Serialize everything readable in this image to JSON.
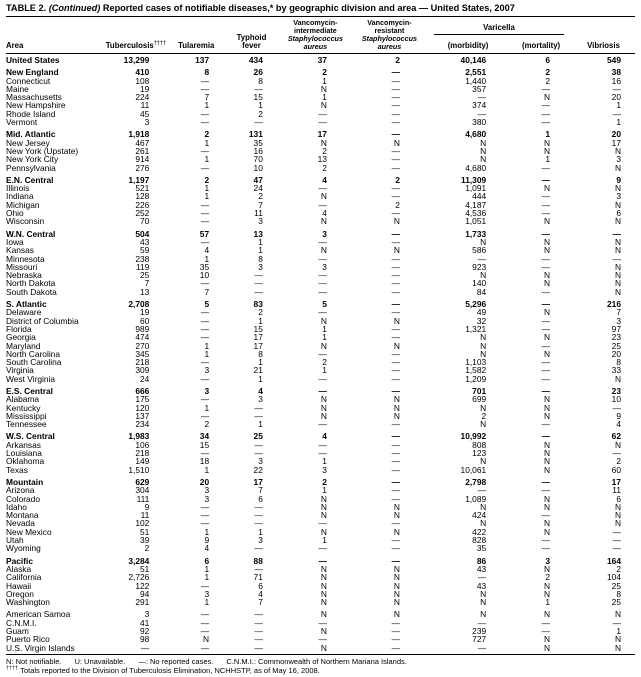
{
  "title": {
    "label": "TABLE 2.",
    "continued": "(Continued)",
    "text": "Reported cases of notifiable diseases,* by geographic division and area — United States, 2007"
  },
  "columns": {
    "area": "Area",
    "tuberculosis": "Tuberculosis",
    "tuberculosis_sup": "††††",
    "tularemia": "Tularemia",
    "typhoid_line1": "Typhoid",
    "typhoid_line2": "fever",
    "visa_line1": "Vancomycin-",
    "visa_line2": "intermediate",
    "vrsa_line1": "Vancomycin-",
    "vrsa_line2": "resistant",
    "staph_line1": "Staphylococcus",
    "staph_line2": "aureus",
    "varicella": "Varicella",
    "morbidity": "(morbidity)",
    "mortality": "(mortality)",
    "vibriosis": "Vibriosis"
  },
  "rows": [
    {
      "area": "United States",
      "b": true,
      "g": false,
      "v": [
        "13,299",
        "137",
        "434",
        "37",
        "2",
        "40,146",
        "6",
        "549"
      ]
    },
    {
      "area": "New England",
      "b": true,
      "g": true,
      "v": [
        "410",
        "8",
        "26",
        "2",
        "—",
        "2,551",
        "2",
        "38"
      ]
    },
    {
      "area": "Connecticut",
      "b": false,
      "g": false,
      "v": [
        "108",
        "—",
        "8",
        "1",
        "—",
        "1,440",
        "2",
        "16"
      ]
    },
    {
      "area": "Maine",
      "b": false,
      "g": false,
      "v": [
        "19",
        "—",
        "—",
        "N",
        "—",
        "357",
        "—",
        "—"
      ]
    },
    {
      "area": "Massachusetts",
      "b": false,
      "g": false,
      "v": [
        "224",
        "7",
        "15",
        "1",
        "—",
        "—",
        "N",
        "20"
      ]
    },
    {
      "area": "New Hampshire",
      "b": false,
      "g": false,
      "v": [
        "11",
        "1",
        "1",
        "N",
        "—",
        "374",
        "—",
        "1"
      ]
    },
    {
      "area": "Rhode Island",
      "b": false,
      "g": false,
      "v": [
        "45",
        "—",
        "2",
        "—",
        "—",
        "—",
        "—",
        "—"
      ]
    },
    {
      "area": "Vermont",
      "b": false,
      "g": false,
      "v": [
        "3",
        "—",
        "—",
        "—",
        "—",
        "380",
        "—",
        "1"
      ]
    },
    {
      "area": "Mid. Atlantic",
      "b": true,
      "g": true,
      "v": [
        "1,918",
        "2",
        "131",
        "17",
        "—",
        "4,680",
        "1",
        "20"
      ]
    },
    {
      "area": "New Jersey",
      "b": false,
      "g": false,
      "v": [
        "467",
        "1",
        "35",
        "N",
        "N",
        "N",
        "N",
        "17"
      ]
    },
    {
      "area": "New York (Upstate)",
      "b": false,
      "g": false,
      "v": [
        "261",
        "—",
        "16",
        "2",
        "—",
        "N",
        "N",
        "N"
      ]
    },
    {
      "area": "New York City",
      "b": false,
      "g": false,
      "v": [
        "914",
        "1",
        "70",
        "13",
        "—",
        "N",
        "1",
        "3"
      ]
    },
    {
      "area": "Pennsylvania",
      "b": false,
      "g": false,
      "v": [
        "276",
        "—",
        "10",
        "2",
        "—",
        "4,680",
        "—",
        "N"
      ]
    },
    {
      "area": "E.N. Central",
      "b": true,
      "g": true,
      "v": [
        "1,197",
        "2",
        "47",
        "4",
        "2",
        "11,309",
        "—",
        "9"
      ]
    },
    {
      "area": "Illinois",
      "b": false,
      "g": false,
      "v": [
        "521",
        "1",
        "24",
        "—",
        "—",
        "1,091",
        "N",
        "N"
      ]
    },
    {
      "area": "Indiana",
      "b": false,
      "g": false,
      "v": [
        "128",
        "1",
        "2",
        "N",
        "—",
        "444",
        "—",
        "3"
      ]
    },
    {
      "area": "Michigan",
      "b": false,
      "g": false,
      "v": [
        "226",
        "—",
        "7",
        "—",
        "2",
        "4,187",
        "—",
        "N"
      ]
    },
    {
      "area": "Ohio",
      "b": false,
      "g": false,
      "v": [
        "252",
        "—",
        "11",
        "4",
        "—",
        "4,536",
        "—",
        "6"
      ]
    },
    {
      "area": "Wisconsin",
      "b": false,
      "g": false,
      "v": [
        "70",
        "—",
        "3",
        "N",
        "N",
        "1,051",
        "N",
        "N"
      ]
    },
    {
      "area": "W.N. Central",
      "b": true,
      "g": true,
      "v": [
        "504",
        "57",
        "13",
        "3",
        "—",
        "1,733",
        "—",
        "—"
      ]
    },
    {
      "area": "Iowa",
      "b": false,
      "g": false,
      "v": [
        "43",
        "—",
        "1",
        "—",
        "—",
        "N",
        "N",
        "N"
      ]
    },
    {
      "area": "Kansas",
      "b": false,
      "g": false,
      "v": [
        "59",
        "4",
        "1",
        "N",
        "N",
        "586",
        "N",
        "N"
      ]
    },
    {
      "area": "Minnesota",
      "b": false,
      "g": false,
      "v": [
        "238",
        "1",
        "8",
        "—",
        "—",
        "—",
        "—",
        "—"
      ]
    },
    {
      "area": "Missouri",
      "b": false,
      "g": false,
      "v": [
        "119",
        "35",
        "3",
        "3",
        "—",
        "923",
        "—",
        "N"
      ]
    },
    {
      "area": "Nebraska",
      "b": false,
      "g": false,
      "v": [
        "25",
        "10",
        "—",
        "—",
        "—",
        "N",
        "N",
        "N"
      ]
    },
    {
      "area": "North Dakota",
      "b": false,
      "g": false,
      "v": [
        "7",
        "—",
        "—",
        "—",
        "—",
        "140",
        "N",
        "N"
      ]
    },
    {
      "area": "South Dakota",
      "b": false,
      "g": false,
      "v": [
        "13",
        "7",
        "—",
        "—",
        "—",
        "84",
        "—",
        "N"
      ]
    },
    {
      "area": "S. Atlantic",
      "b": true,
      "g": true,
      "v": [
        "2,708",
        "5",
        "83",
        "5",
        "—",
        "5,296",
        "—",
        "216"
      ]
    },
    {
      "area": "Delaware",
      "b": false,
      "g": false,
      "v": [
        "19",
        "—",
        "2",
        "—",
        "—",
        "49",
        "N",
        "7"
      ]
    },
    {
      "area": "District of Columbia",
      "b": false,
      "g": false,
      "v": [
        "60",
        "—",
        "1",
        "N",
        "N",
        "32",
        "—",
        "3"
      ]
    },
    {
      "area": "Florida",
      "b": false,
      "g": false,
      "v": [
        "989",
        "—",
        "15",
        "1",
        "—",
        "1,321",
        "—",
        "97"
      ]
    },
    {
      "area": "Georgia",
      "b": false,
      "g": false,
      "v": [
        "474",
        "—",
        "17",
        "1",
        "—",
        "N",
        "N",
        "23"
      ]
    },
    {
      "area": "Maryland",
      "b": false,
      "g": false,
      "v": [
        "270",
        "1",
        "17",
        "N",
        "N",
        "N",
        "—",
        "25"
      ]
    },
    {
      "area": "North Carolina",
      "b": false,
      "g": false,
      "v": [
        "345",
        "1",
        "8",
        "—",
        "—",
        "N",
        "N",
        "20"
      ]
    },
    {
      "area": "South Carolina",
      "b": false,
      "g": false,
      "v": [
        "218",
        "—",
        "1",
        "2",
        "—",
        "1,103",
        "—",
        "8"
      ]
    },
    {
      "area": "Virginia",
      "b": false,
      "g": false,
      "v": [
        "309",
        "3",
        "21",
        "1",
        "—",
        "1,582",
        "—",
        "33"
      ]
    },
    {
      "area": "West Virginia",
      "b": false,
      "g": false,
      "v": [
        "24",
        "—",
        "1",
        "—",
        "—",
        "1,209",
        "—",
        "N"
      ]
    },
    {
      "area": "E.S. Central",
      "b": true,
      "g": true,
      "v": [
        "666",
        "3",
        "4",
        "—",
        "—",
        "701",
        "—",
        "23"
      ]
    },
    {
      "area": "Alabama",
      "b": false,
      "g": false,
      "v": [
        "175",
        "—",
        "3",
        "N",
        "N",
        "699",
        "N",
        "10"
      ]
    },
    {
      "area": "Kentucky",
      "b": false,
      "g": false,
      "v": [
        "120",
        "1",
        "—",
        "N",
        "N",
        "N",
        "N",
        "—"
      ]
    },
    {
      "area": "Mississippi",
      "b": false,
      "g": false,
      "v": [
        "137",
        "—",
        "—",
        "N",
        "N",
        "2",
        "N",
        "9"
      ]
    },
    {
      "area": "Tennessee",
      "b": false,
      "g": false,
      "v": [
        "234",
        "2",
        "1",
        "—",
        "—",
        "N",
        "—",
        "4"
      ]
    },
    {
      "area": "W.S. Central",
      "b": true,
      "g": true,
      "v": [
        "1,983",
        "34",
        "25",
        "4",
        "—",
        "10,992",
        "—",
        "62"
      ]
    },
    {
      "area": "Arkansas",
      "b": false,
      "g": false,
      "v": [
        "106",
        "15",
        "—",
        "—",
        "—",
        "808",
        "N",
        "N"
      ]
    },
    {
      "area": "Louisiana",
      "b": false,
      "g": false,
      "v": [
        "218",
        "—",
        "—",
        "—",
        "—",
        "123",
        "N",
        "—"
      ]
    },
    {
      "area": "Oklahoma",
      "b": false,
      "g": false,
      "v": [
        "149",
        "18",
        "3",
        "1",
        "—",
        "N",
        "N",
        "2"
      ]
    },
    {
      "area": "Texas",
      "b": false,
      "g": false,
      "v": [
        "1,510",
        "1",
        "22",
        "3",
        "—",
        "10,061",
        "N",
        "60"
      ]
    },
    {
      "area": "Mountain",
      "b": true,
      "g": true,
      "v": [
        "629",
        "20",
        "17",
        "2",
        "—",
        "2,798",
        "—",
        "17"
      ]
    },
    {
      "area": "Arizona",
      "b": false,
      "g": false,
      "v": [
        "304",
        "3",
        "7",
        "1",
        "—",
        "—",
        "—",
        "11"
      ]
    },
    {
      "area": "Colorado",
      "b": false,
      "g": false,
      "v": [
        "111",
        "3",
        "6",
        "N",
        "—",
        "1,089",
        "N",
        "6"
      ]
    },
    {
      "area": "Idaho",
      "b": false,
      "g": false,
      "v": [
        "9",
        "—",
        "—",
        "N",
        "N",
        "N",
        "N",
        "N"
      ]
    },
    {
      "area": "Montana",
      "b": false,
      "g": false,
      "v": [
        "11",
        "—",
        "—",
        "N",
        "N",
        "424",
        "—",
        "N"
      ]
    },
    {
      "area": "Nevada",
      "b": false,
      "g": false,
      "v": [
        "102",
        "—",
        "—",
        "—",
        "—",
        "N",
        "N",
        "N"
      ]
    },
    {
      "area": "New Mexico",
      "b": false,
      "g": false,
      "v": [
        "51",
        "1",
        "1",
        "N",
        "N",
        "422",
        "N",
        "—"
      ]
    },
    {
      "area": "Utah",
      "b": false,
      "g": false,
      "v": [
        "39",
        "9",
        "3",
        "1",
        "—",
        "828",
        "—",
        "—"
      ]
    },
    {
      "area": "Wyoming",
      "b": false,
      "g": false,
      "v": [
        "2",
        "4",
        "—",
        "—",
        "—",
        "35",
        "—",
        "—"
      ]
    },
    {
      "area": "Pacific",
      "b": true,
      "g": true,
      "v": [
        "3,284",
        "6",
        "88",
        "—",
        "—",
        "86",
        "3",
        "164"
      ]
    },
    {
      "area": "Alaska",
      "b": false,
      "g": false,
      "v": [
        "51",
        "1",
        "—",
        "N",
        "N",
        "43",
        "N",
        "2"
      ]
    },
    {
      "area": "California",
      "b": false,
      "g": false,
      "v": [
        "2,726",
        "1",
        "71",
        "N",
        "N",
        "—",
        "2",
        "104"
      ]
    },
    {
      "area": "Hawaii",
      "b": false,
      "g": false,
      "v": [
        "122",
        "—",
        "6",
        "N",
        "N",
        "43",
        "N",
        "25"
      ]
    },
    {
      "area": "Oregon",
      "b": false,
      "g": false,
      "v": [
        "94",
        "3",
        "4",
        "N",
        "N",
        "N",
        "N",
        "8"
      ]
    },
    {
      "area": "Washington",
      "b": false,
      "g": false,
      "v": [
        "291",
        "1",
        "7",
        "N",
        "N",
        "N",
        "1",
        "25"
      ]
    },
    {
      "area": "American Samoa",
      "b": false,
      "g": true,
      "v": [
        "3",
        "—",
        "—",
        "N",
        "N",
        "N",
        "N",
        "N"
      ]
    },
    {
      "area": "C.N.M.I.",
      "b": false,
      "g": false,
      "v": [
        "41",
        "—",
        "—",
        "—",
        "—",
        "—",
        "—",
        "—"
      ]
    },
    {
      "area": "Guam",
      "b": false,
      "g": false,
      "v": [
        "92",
        "—",
        "—",
        "N",
        "—",
        "239",
        "—",
        "1"
      ]
    },
    {
      "area": "Puerto Rico",
      "b": false,
      "g": false,
      "v": [
        "98",
        "N",
        "—",
        "—",
        "—",
        "727",
        "N",
        "N"
      ]
    },
    {
      "area": "U.S. Virgin Islands",
      "b": false,
      "g": false,
      "v": [
        "—",
        "—",
        "—",
        "N",
        "—",
        "—",
        "N",
        "N"
      ]
    }
  ],
  "footnotes": {
    "items": [
      "N: Not notifiable.",
      "U: Unavailable.",
      "—: No reported cases.",
      "C.N.M.I.: Commonwealth of Northern Mariana Islands."
    ],
    "dagger": "††††",
    "line2": "Totals reported to the Division of Tuberculosis Elimination, NCHHSTP, as of May 16, 2008."
  }
}
